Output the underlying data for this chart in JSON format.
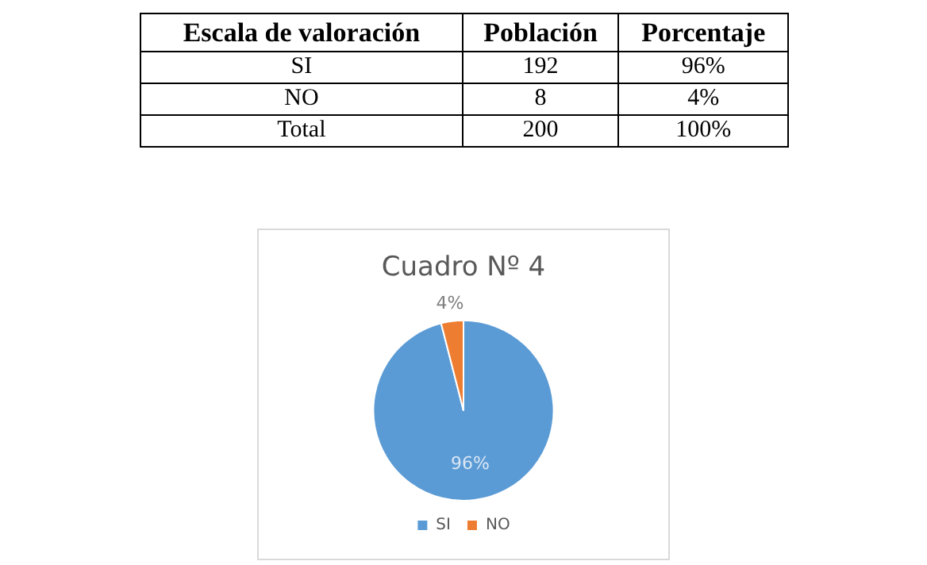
{
  "chart_data": {
    "type": "pie",
    "title": "Cuadro Nº 4",
    "categories": [
      "SI",
      "NO"
    ],
    "values": [
      96,
      4
    ],
    "colors": [
      "#5b9bd5",
      "#ed7d31"
    ],
    "value_labels": [
      "96%",
      "4%"
    ],
    "legend": "bottom",
    "annotations": [
      "Escala de valoración",
      "Población",
      "Porcentaje",
      "SI",
      "192",
      "96%",
      "NO",
      "8",
      "4%",
      "Total",
      "200",
      "100%"
    ]
  }
}
